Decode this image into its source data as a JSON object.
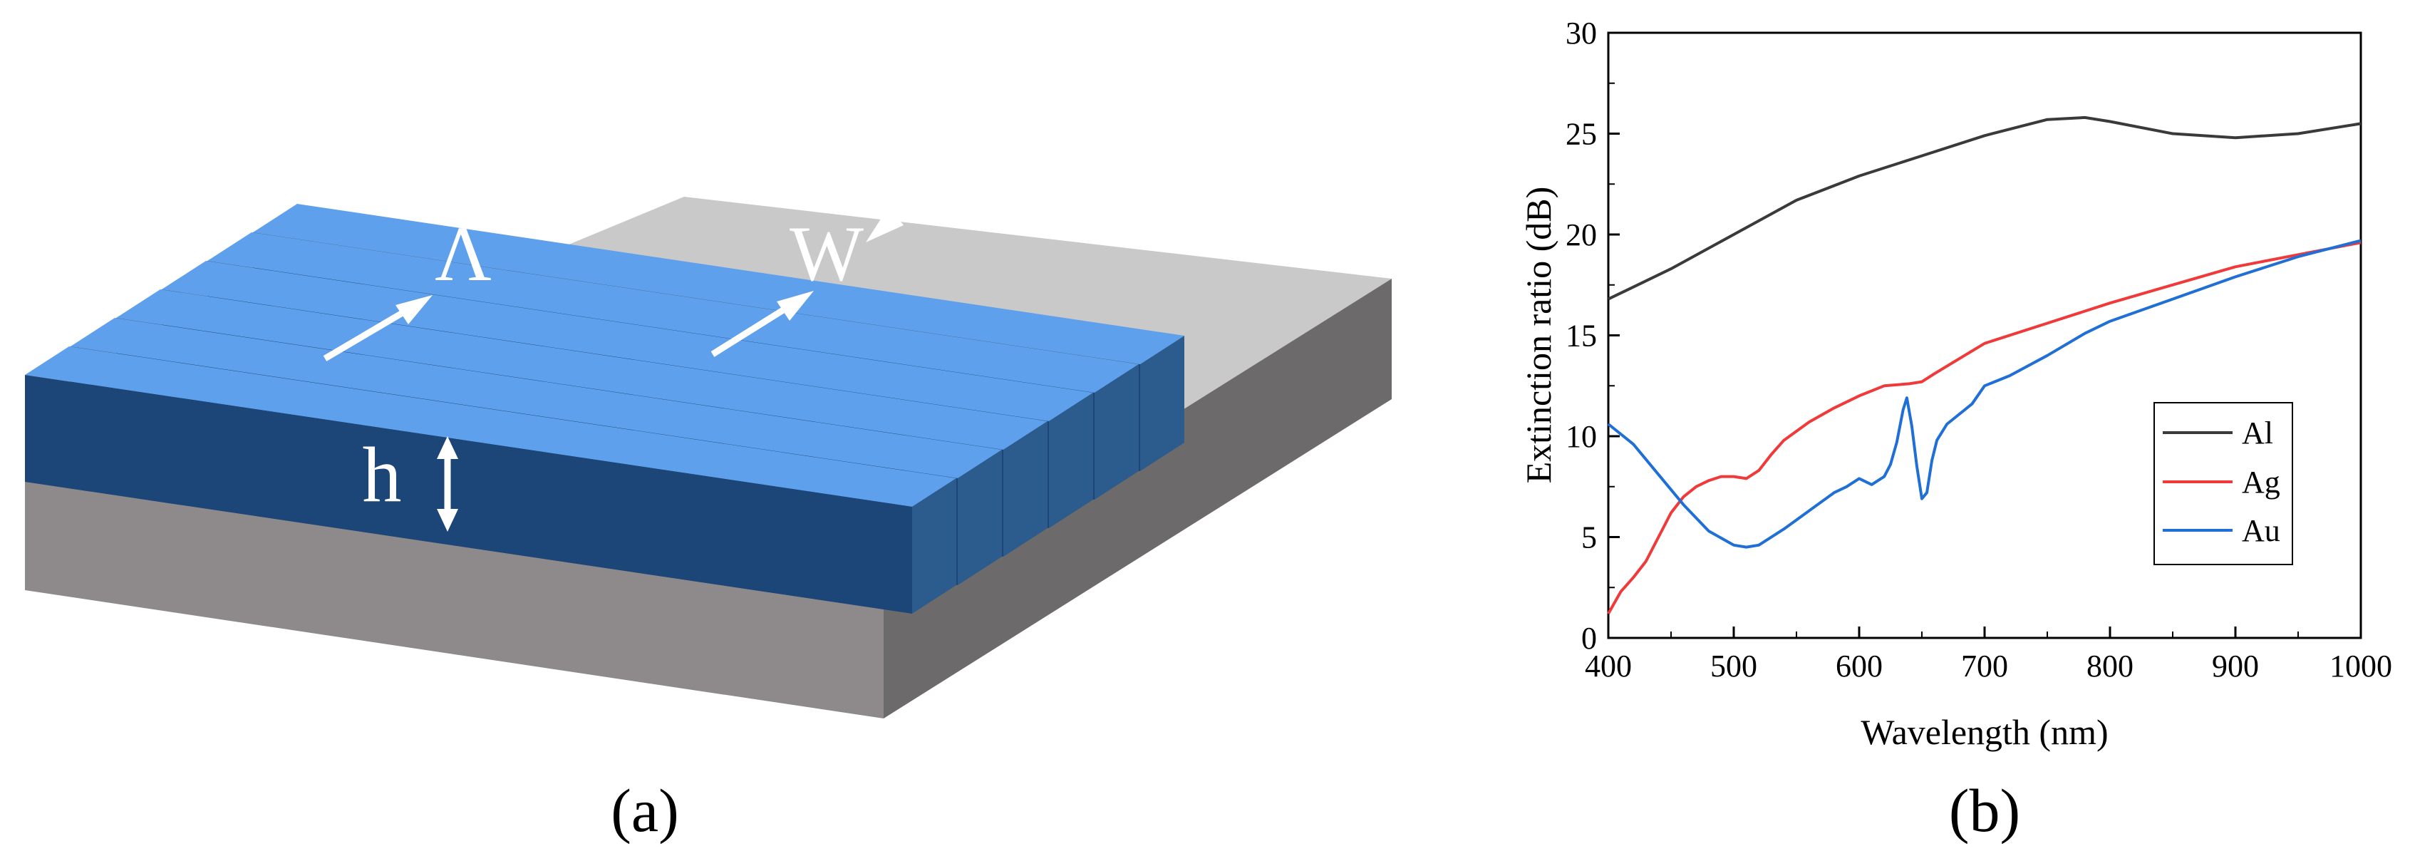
{
  "panel_a": {
    "caption": "(a)",
    "labels": {
      "period": "Λ",
      "width": "W",
      "height": "h"
    },
    "colors": {
      "bar_top": "#5fa0ec",
      "bar_front": "#1c4677",
      "bar_end": "#2c5c8d",
      "substrate_top": "#c9c9c9",
      "substrate_front": "#8e8a8b",
      "substrate_side": "#6d6a6b",
      "arrow": "#ffffff"
    }
  },
  "panel_b": {
    "caption": "(b)",
    "chart_data": {
      "type": "line",
      "xlabel": "Wavelength (nm)",
      "ylabel": "Extinction ratio (dB)",
      "xlim": [
        400,
        1000
      ],
      "ylim": [
        0,
        30
      ],
      "xticks": [
        400,
        500,
        600,
        700,
        800,
        900,
        1000
      ],
      "yticks": [
        0,
        5,
        10,
        15,
        20,
        25,
        30
      ],
      "grid": false,
      "legend_position": "right",
      "series": [
        {
          "name": "Al",
          "color": "#3a3a3a",
          "x": [
            400,
            450,
            500,
            550,
            600,
            650,
            700,
            750,
            780,
            800,
            850,
            900,
            950,
            1000
          ],
          "y": [
            16.8,
            18.3,
            20.0,
            21.7,
            22.9,
            23.9,
            24.9,
            25.7,
            25.8,
            25.6,
            25.0,
            24.8,
            25.0,
            25.5
          ]
        },
        {
          "name": "Ag",
          "color": "#f03a3a",
          "x": [
            400,
            410,
            420,
            430,
            440,
            450,
            460,
            470,
            480,
            490,
            500,
            510,
            520,
            530,
            540,
            560,
            580,
            600,
            620,
            640,
            650,
            660,
            700,
            750,
            800,
            850,
            900,
            950,
            1000
          ],
          "y": [
            1.2,
            2.3,
            3.0,
            3.8,
            5.0,
            6.2,
            7.0,
            7.5,
            7.8,
            8.0,
            8.0,
            7.9,
            8.3,
            9.1,
            9.8,
            10.7,
            11.4,
            12.0,
            12.5,
            12.6,
            12.7,
            13.1,
            14.6,
            15.6,
            16.6,
            17.5,
            18.4,
            19.0,
            19.6
          ]
        },
        {
          "name": "Au",
          "color": "#1f6fd6",
          "x": [
            400,
            420,
            440,
            460,
            480,
            500,
            510,
            520,
            540,
            560,
            580,
            590,
            600,
            610,
            620,
            625,
            630,
            635,
            638,
            642,
            646,
            650,
            654,
            658,
            662,
            670,
            690,
            700,
            720,
            750,
            780,
            800,
            850,
            900,
            950,
            1000
          ],
          "y": [
            10.6,
            9.6,
            8.1,
            6.6,
            5.3,
            4.6,
            4.5,
            4.6,
            5.4,
            6.3,
            7.2,
            7.5,
            7.9,
            7.6,
            8.0,
            8.6,
            9.7,
            11.3,
            11.9,
            10.5,
            8.5,
            6.9,
            7.2,
            8.8,
            9.8,
            10.6,
            11.6,
            12.5,
            13.0,
            14.0,
            15.1,
            15.7,
            16.8,
            17.9,
            18.9,
            19.7
          ]
        }
      ]
    }
  }
}
